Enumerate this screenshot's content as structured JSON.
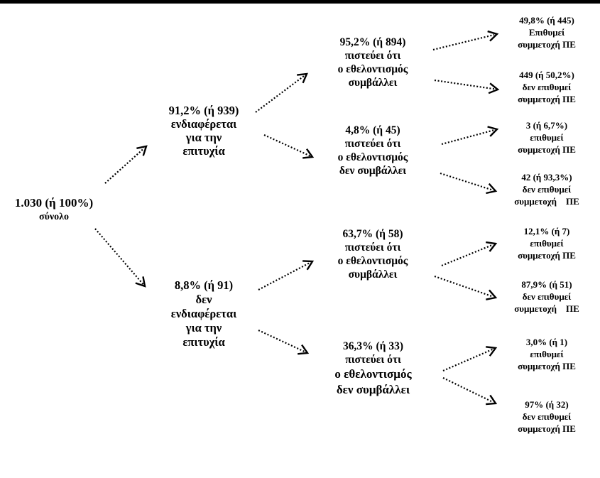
{
  "root": {
    "line1": "1.030 (ή 100%)",
    "line2": "σύνολο"
  },
  "interested": {
    "lines": [
      "91,2% (ή 939)",
      "ενδιαφέρεται",
      "για την",
      "επιτυχία"
    ],
    "believes": {
      "lines": [
        "95,2% (ή 894)",
        "πιστεύει ότι",
        "ο εθελοντισμός",
        "συμβάλλει"
      ],
      "wants": [
        "49,8% (ή 445)",
        "Επιθυμεί",
        "συμμετοχή ΠΕ"
      ],
      "not_wants": [
        "449 (ή 50,2%)",
        "δεν επιθυμεί",
        "συμμετοχή ΠΕ"
      ]
    },
    "not_believes": {
      "lines": [
        "4,8% (ή 45)",
        "πιστεύει ότι",
        "ο εθελοντισμός",
        "δεν συμβάλλει"
      ],
      "wants": [
        "3 (ή 6,7%)",
        "επιθυμεί",
        "συμμετοχή ΠΕ"
      ],
      "not_wants": [
        "42 (ή 93,3%)",
        "δεν επιθυμεί",
        "συμμετοχή    ΠΕ"
      ]
    }
  },
  "not_interested": {
    "lines": [
      "8,8% (ή 91)",
      "δεν",
      "ενδιαφέρεται",
      "για την",
      "επιτυχία"
    ],
    "believes": {
      "lines": [
        "63,7% (ή 58)",
        "πιστεύει ότι",
        "ο εθελοντισμός",
        "συμβάλλει"
      ],
      "wants": [
        "12,1% (ή 7)",
        "επιθυμεί",
        "συμμετοχή ΠΕ"
      ],
      "not_wants": [
        "87,9% (ή 51)",
        "δεν επιθυμεί",
        "συμμετοχή    ΠΕ"
      ]
    },
    "not_believes": {
      "lines": [
        "36,3% (ή 33)",
        "πιστεύει ότι",
        "ο εθελοντισμός",
        "δεν συμβάλλει"
      ],
      "wants": [
        "3,0% (ή 1)",
        "επιθυμεί",
        "συμμετοχή ΠΕ"
      ],
      "not_wants": [
        "97% (ή 32)",
        "δεν επιθυμεί",
        "συμμετοχή ΠΕ"
      ]
    }
  }
}
